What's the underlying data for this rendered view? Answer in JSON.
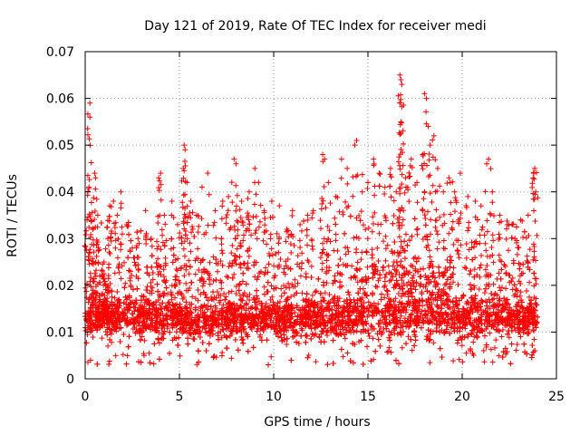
{
  "chart_data": {
    "type": "scatter",
    "title": "Day 121 of 2019, Rate Of TEC Index for receiver medi",
    "xlabel": "GPS time / hours",
    "ylabel": "ROTI / TECUs",
    "xlim": [
      0,
      25
    ],
    "ylim": [
      0,
      0.07
    ],
    "xticks": [
      0,
      5,
      10,
      15,
      20,
      25
    ],
    "yticks": [
      0,
      0.01,
      0.02,
      0.03,
      0.04,
      0.05,
      0.06,
      0.07
    ],
    "xtick_labels": [
      "0",
      "5",
      "10",
      "15",
      "20",
      "25"
    ],
    "ytick_labels": [
      "0",
      "0.01",
      "0.02",
      "0.03",
      "0.04",
      "0.05",
      "0.06",
      "0.07"
    ],
    "grid": true,
    "marker": "+",
    "color": "#ff0000",
    "series": [
      {
        "name": "ROTI",
        "points": [
          [
            0.1,
            0.034
          ],
          [
            0.2,
            0.041
          ],
          [
            0.25,
            0.059
          ],
          [
            0.25,
            0.056
          ],
          [
            0.4,
            0.032
          ],
          [
            0.5,
            0.044
          ],
          [
            0.55,
            0.043
          ],
          [
            0.7,
            0.028
          ],
          [
            0.9,
            0.022
          ],
          [
            1.0,
            0.025
          ],
          [
            1.2,
            0.03
          ],
          [
            1.3,
            0.037
          ],
          [
            1.5,
            0.038
          ],
          [
            1.7,
            0.035
          ],
          [
            1.9,
            0.04
          ],
          [
            2.2,
            0.033
          ],
          [
            2.5,
            0.028
          ],
          [
            2.8,
            0.03
          ],
          [
            3.2,
            0.036
          ],
          [
            3.5,
            0.03
          ],
          [
            3.9,
            0.043
          ],
          [
            4.0,
            0.044
          ],
          [
            4.2,
            0.035
          ],
          [
            4.6,
            0.038
          ],
          [
            4.9,
            0.033
          ],
          [
            5.2,
            0.045
          ],
          [
            5.25,
            0.05
          ],
          [
            5.3,
            0.049
          ],
          [
            5.4,
            0.042
          ],
          [
            5.6,
            0.038
          ],
          [
            5.9,
            0.035
          ],
          [
            6.2,
            0.041
          ],
          [
            6.5,
            0.044
          ],
          [
            6.9,
            0.036
          ],
          [
            7.3,
            0.038
          ],
          [
            7.6,
            0.039
          ],
          [
            7.9,
            0.047
          ],
          [
            8.0,
            0.046
          ],
          [
            8.3,
            0.038
          ],
          [
            8.7,
            0.04
          ],
          [
            9.0,
            0.045
          ],
          [
            9.2,
            0.042
          ],
          [
            9.5,
            0.036
          ],
          [
            9.9,
            0.038
          ],
          [
            10.3,
            0.037
          ],
          [
            10.7,
            0.032
          ],
          [
            11.0,
            0.036
          ],
          [
            11.4,
            0.033
          ],
          [
            11.8,
            0.035
          ],
          [
            12.1,
            0.036
          ],
          [
            12.6,
            0.048
          ],
          [
            12.7,
            0.047
          ],
          [
            12.9,
            0.042
          ],
          [
            13.3,
            0.039
          ],
          [
            13.6,
            0.047
          ],
          [
            13.9,
            0.045
          ],
          [
            14.3,
            0.05
          ],
          [
            14.4,
            0.051
          ],
          [
            14.7,
            0.04
          ],
          [
            15.0,
            0.042
          ],
          [
            15.3,
            0.047
          ],
          [
            15.6,
            0.044
          ],
          [
            15.9,
            0.041
          ],
          [
            16.2,
            0.045
          ],
          [
            16.5,
            0.04
          ],
          [
            16.7,
            0.065
          ],
          [
            16.75,
            0.064
          ],
          [
            16.8,
            0.063
          ],
          [
            16.7,
            0.059
          ],
          [
            16.75,
            0.055
          ],
          [
            17.0,
            0.043
          ],
          [
            17.3,
            0.047
          ],
          [
            17.6,
            0.042
          ],
          [
            17.9,
            0.048
          ],
          [
            18.0,
            0.061
          ],
          [
            18.1,
            0.06
          ],
          [
            18.2,
            0.054
          ],
          [
            18.3,
            0.05
          ],
          [
            18.5,
            0.052
          ],
          [
            18.7,
            0.045
          ],
          [
            19.0,
            0.04
          ],
          [
            19.3,
            0.043
          ],
          [
            19.6,
            0.04
          ],
          [
            19.9,
            0.044
          ],
          [
            20.3,
            0.039
          ],
          [
            20.7,
            0.038
          ],
          [
            21.0,
            0.037
          ],
          [
            21.3,
            0.046
          ],
          [
            21.4,
            0.047
          ],
          [
            21.6,
            0.04
          ],
          [
            22.0,
            0.035
          ],
          [
            22.4,
            0.033
          ],
          [
            22.8,
            0.03
          ],
          [
            23.1,
            0.034
          ],
          [
            23.5,
            0.035
          ],
          [
            23.8,
            0.044
          ],
          [
            23.85,
            0.045
          ],
          [
            23.9,
            0.04
          ]
        ]
      }
    ],
    "generated_noise": {
      "x_range": [
        0,
        24
      ],
      "baseline_min": 0.003,
      "baseline_typical_max": 0.025,
      "count": 5200
    }
  }
}
